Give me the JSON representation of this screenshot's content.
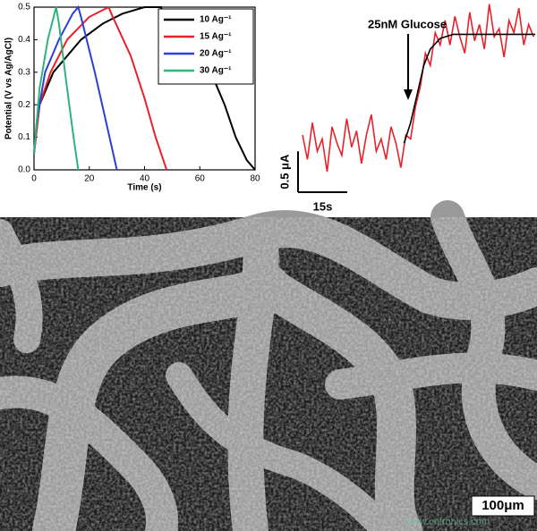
{
  "chart_data": [
    {
      "type": "line",
      "xlabel": "Time (s)",
      "ylabel": "Potential (V vs Ag/AgCl)",
      "xlim": [
        0,
        80
      ],
      "xticks": [
        0,
        20,
        40,
        60,
        80
      ],
      "ylim": [
        0,
        0.5
      ],
      "yticks": [
        0.0,
        0.1,
        0.2,
        0.3,
        0.4,
        0.5
      ],
      "legend": "upper right",
      "series": [
        {
          "name": "10 Ag⁻¹",
          "color": "#000000",
          "x": [
            0,
            2,
            7,
            17,
            25,
            32,
            40,
            46,
            47,
            55,
            64,
            69,
            73,
            77,
            80
          ],
          "values": [
            0.05,
            0.2,
            0.3,
            0.4,
            0.45,
            0.48,
            0.5,
            0.5,
            0.45,
            0.4,
            0.3,
            0.2,
            0.1,
            0.03,
            0
          ]
        },
        {
          "name": "15 Ag⁻¹",
          "color": "#e8212a",
          "x": [
            0,
            2,
            6,
            12,
            20,
            27,
            28,
            35,
            40,
            44,
            48
          ],
          "values": [
            0.05,
            0.2,
            0.3,
            0.4,
            0.47,
            0.5,
            0.48,
            0.35,
            0.22,
            0.1,
            0
          ]
        },
        {
          "name": "20 Ag⁻¹",
          "color": "#2b3fd6",
          "x": [
            0,
            1,
            4,
            9,
            14,
            16,
            17,
            22,
            26,
            30
          ],
          "values": [
            0.05,
            0.15,
            0.3,
            0.4,
            0.48,
            0.5,
            0.47,
            0.3,
            0.15,
            0
          ]
        },
        {
          "name": "30 Ag⁻¹",
          "color": "#2fb37a",
          "x": [
            0,
            2,
            5,
            8,
            9,
            12,
            14,
            16
          ],
          "values": [
            0.05,
            0.25,
            0.4,
            0.5,
            0.45,
            0.25,
            0.12,
            0
          ]
        }
      ]
    },
    {
      "type": "line",
      "annotation": "25nM Glucose",
      "xlim": [
        0,
        71
      ],
      "ylim": [
        -0.6,
        1.75
      ],
      "scale_bars": [
        {
          "label": "0.5 μA",
          "value": 0.5,
          "axis": "y"
        },
        {
          "label": "15s",
          "value": 15,
          "axis": "x"
        }
      ],
      "series": [
        {
          "color": "#e8212a",
          "x": [
            0,
            1.5,
            3,
            4.5,
            6,
            7.5,
            9,
            10.5,
            12,
            13.5,
            15,
            16.5,
            18,
            19.5,
            21,
            22.5,
            24,
            25.5,
            27,
            28.5,
            30,
            31.5,
            33,
            34.5,
            36,
            37.5,
            39,
            40.5,
            42,
            43.5,
            45,
            46.5,
            48,
            49.5,
            51,
            52.5,
            54,
            55.5,
            57,
            58.5,
            60,
            61.5,
            63,
            64.5,
            66,
            67.5,
            69,
            70.5
          ],
          "values": [
            0.1,
            -0.2,
            0.25,
            -0.1,
            0.05,
            -0.35,
            0.2,
            0.0,
            -0.15,
            0.3,
            -0.05,
            0.15,
            -0.25,
            0.1,
            0.35,
            -0.1,
            0.05,
            -0.2,
            0.2,
            0.0,
            -0.3,
            0.1,
            0.05,
            0.45,
            0.7,
            1.1,
            0.95,
            1.35,
            1.2,
            1.5,
            1.2,
            1.55,
            1.3,
            1.1,
            1.6,
            1.25,
            1.45,
            1.15,
            1.7,
            1.3,
            1.4,
            1.05,
            1.5,
            1.35,
            1.65,
            1.2,
            1.45,
            1.3
          ]
        },
        {
          "color": "#000000",
          "x": [
            31,
            33,
            35,
            37,
            39,
            42,
            46,
            71
          ],
          "values": [
            0,
            0.25,
            0.6,
            0.95,
            1.15,
            1.28,
            1.33,
            1.33
          ]
        }
      ]
    }
  ],
  "image": {
    "scale_bar": "100μm",
    "watermark": "www.cntronics.com"
  }
}
